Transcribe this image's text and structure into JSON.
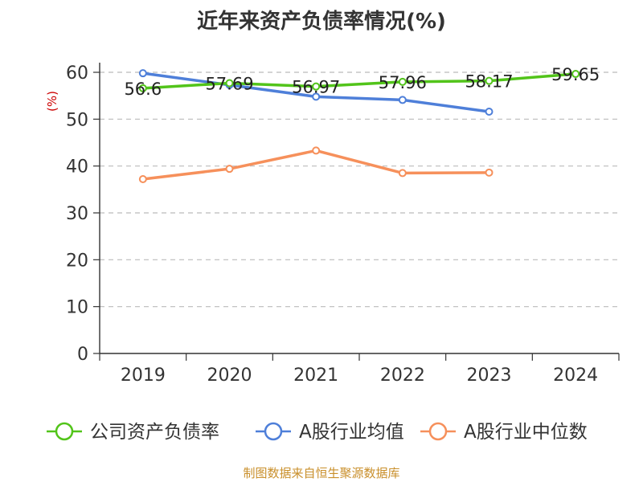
{
  "chart_data": {
    "type": "line",
    "title": "近年来资产负债率情况(%)",
    "ylabel": "(%)",
    "xlabel": "",
    "categories": [
      "2019",
      "2020",
      "2021",
      "2022",
      "2023",
      "2024"
    ],
    "ylim": [
      0,
      60
    ],
    "yticks": [
      0,
      10,
      20,
      30,
      40,
      50,
      60
    ],
    "grid": true,
    "legend_position": "bottom",
    "series": [
      {
        "name": "公司资产负债率",
        "color": "#52c41a",
        "values": [
          56.6,
          57.69,
          56.97,
          57.96,
          58.17,
          59.65
        ],
        "labels": [
          "56.6",
          "57.69",
          "56.97",
          "57.96",
          "58.17",
          "59.65"
        ]
      },
      {
        "name": "A股行业均值",
        "color": "#4e7fd9",
        "values": [
          59.8,
          57.3,
          54.8,
          54.1,
          51.6,
          null
        ]
      },
      {
        "name": "A股行业中位数",
        "color": "#f6905b",
        "values": [
          37.2,
          39.4,
          43.3,
          38.5,
          38.6,
          null
        ]
      }
    ]
  },
  "footer": "制图数据来自恒生聚源数据库"
}
